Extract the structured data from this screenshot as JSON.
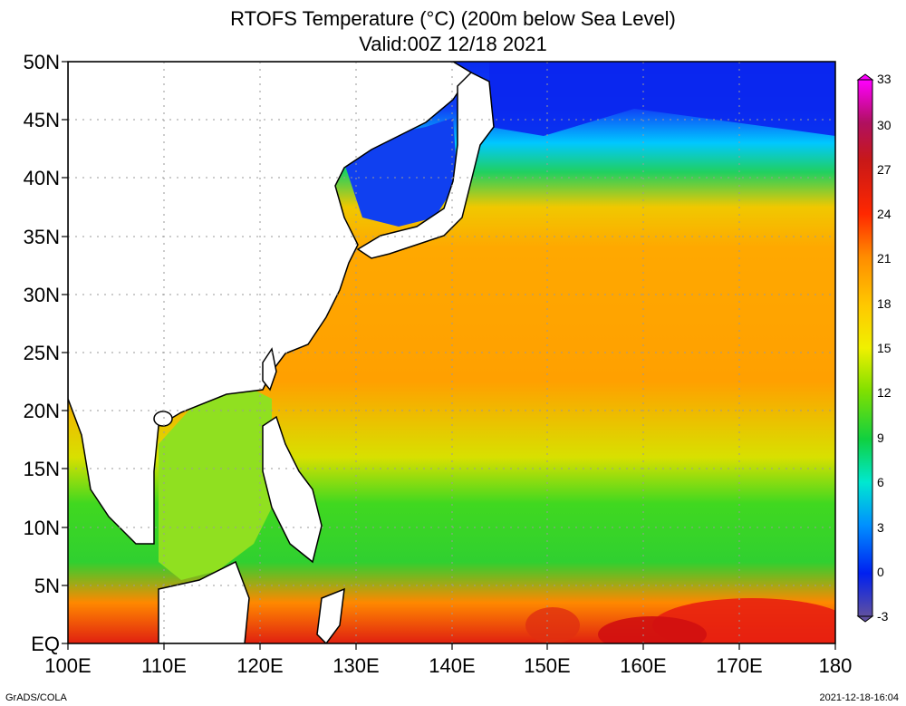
{
  "title": {
    "line1": "RTOFS Temperature (°C) (200m below Sea Level)",
    "line2": "Valid:00Z 12/18 2021"
  },
  "axes": {
    "lat_labels": [
      "50N",
      "45N",
      "40N",
      "35N",
      "30N",
      "25N",
      "20N",
      "15N",
      "10N",
      "5N",
      "EQ"
    ],
    "lon_labels": [
      "100E",
      "110E",
      "120E",
      "130E",
      "140E",
      "150E",
      "160E",
      "170E",
      "180"
    ]
  },
  "colorbar": {
    "labels": [
      "33",
      "30",
      "27",
      "24",
      "21",
      "18",
      "15",
      "12",
      "9",
      "6",
      "3",
      "0",
      "-3"
    ],
    "colors": [
      "#ff00ff",
      "#a51e28",
      "#dc1414",
      "#ff3c00",
      "#ff8c00",
      "#ffbe00",
      "#ffee00",
      "#a0e600",
      "#20d020",
      "#00e8c0",
      "#00b4ff",
      "#0028ff",
      "#6050a0"
    ]
  },
  "footer": {
    "left": "GrADS/COLA",
    "right": "2021-12-18-16:04"
  }
}
